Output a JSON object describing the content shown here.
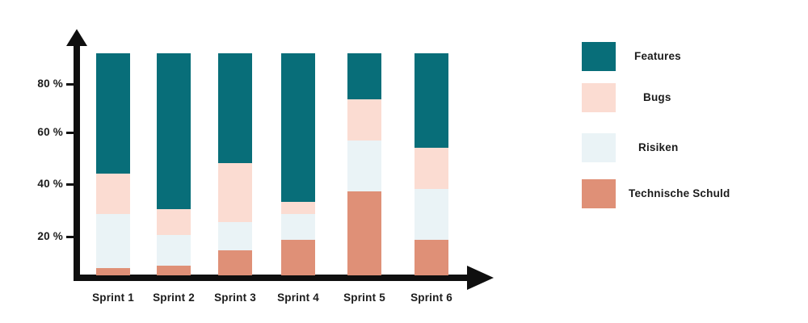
{
  "chart_data": {
    "type": "bar",
    "stacked": true,
    "title": "",
    "xlabel": "",
    "ylabel": "",
    "categories": [
      "Sprint 1",
      "Sprint 2",
      "Sprint 3",
      "Sprint 4",
      "Sprint 5",
      "Sprint 6"
    ],
    "baseline_pct": 5,
    "bar_top_pct": 92,
    "series": [
      {
        "name": "Technische Schuld",
        "color": "#DF9077",
        "cumulative_top_pct": [
          8,
          9,
          15,
          19,
          38,
          19
        ]
      },
      {
        "name": "Risiken",
        "color": "#EAF3F6",
        "cumulative_top_pct": [
          29,
          21,
          26,
          29,
          58,
          39
        ]
      },
      {
        "name": "Bugs",
        "color": "#FBDCD2",
        "cumulative_top_pct": [
          45,
          31,
          49,
          34,
          74,
          55
        ]
      },
      {
        "name": "Features",
        "color": "#086E79",
        "cumulative_top_pct": [
          92,
          92,
          92,
          92,
          92,
          92
        ]
      }
    ],
    "y_ticks": [
      {
        "label": "20 %",
        "value": 20
      },
      {
        "label": "40 %",
        "value": 40
      },
      {
        "label": "60 %",
        "value": 60
      },
      {
        "label": "80 %",
        "value": 80
      }
    ],
    "grid": false,
    "legend_position": "right"
  },
  "legend": {
    "items": [
      {
        "label": "Features",
        "color": "#086E79"
      },
      {
        "label": "Bugs",
        "color": "#FBDCD2"
      },
      {
        "label": "Risiken",
        "color": "#EAF3F6"
      },
      {
        "label": "Technische Schuld",
        "color": "#DF9077"
      }
    ]
  },
  "colors": {
    "features": "#086E79",
    "bugs": "#FBDCD2",
    "risiken": "#EAF3F6",
    "technische_schuld": "#DF9077",
    "axis": "#0f0f0f",
    "text": "#1b1b1b",
    "background": "#ffffff"
  }
}
